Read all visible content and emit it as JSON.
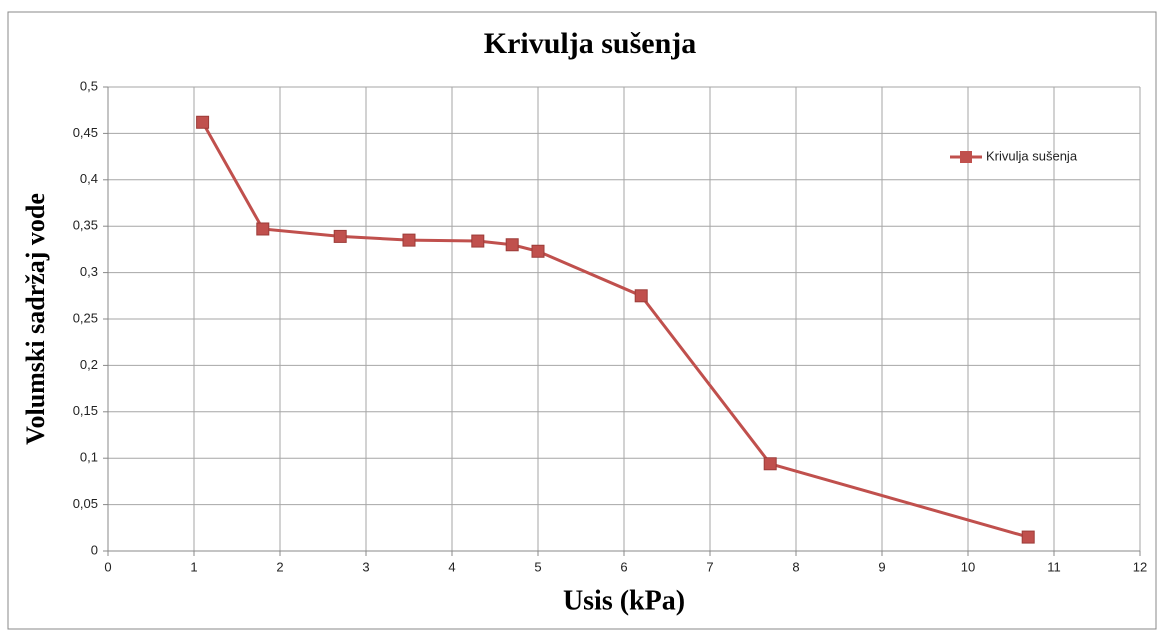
{
  "chart_data": {
    "type": "line",
    "title": "Krivulja sušenja",
    "x_label": "Usis (kPa)",
    "y_label": "Volumski sadržaj vode",
    "x": [
      1.1,
      1.8,
      2.7,
      3.5,
      4.3,
      4.7,
      5.0,
      6.2,
      7.7,
      10.7
    ],
    "series": [
      {
        "name": "Krivulja sušenja",
        "color": "#c0504d",
        "values": [
          0.462,
          0.347,
          0.339,
          0.335,
          0.334,
          0.33,
          0.323,
          0.275,
          0.094,
          0.015
        ]
      }
    ],
    "xlim": [
      0,
      12
    ],
    "xticks": [
      0,
      1,
      2,
      3,
      4,
      5,
      6,
      7,
      8,
      9,
      10,
      11,
      12
    ],
    "ylim": [
      0,
      0.5
    ],
    "yticks": [
      0,
      {
        "value": 0.05,
        "label": "0,05"
      },
      {
        "value": 0.1,
        "label": "0,1"
      },
      {
        "value": 0.15,
        "label": "0,15"
      },
      {
        "value": 0.2,
        "label": "0,2"
      },
      {
        "value": 0.25,
        "label": "0,25"
      },
      {
        "value": 0.3,
        "label": "0,3"
      },
      {
        "value": 0.35,
        "label": "0,35"
      },
      {
        "value": 0.4,
        "label": "0,4"
      },
      {
        "value": 0.45,
        "label": "0,45"
      },
      {
        "value": 0.5,
        "label": "0,5"
      }
    ],
    "grid": true,
    "legend": "upper right"
  }
}
